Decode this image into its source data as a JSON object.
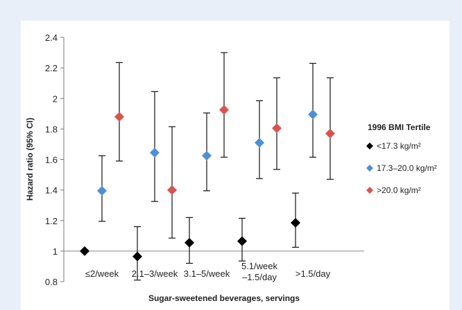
{
  "chart_data": {
    "type": "scatter",
    "title": "",
    "xlabel": "Sugar-sweetened beverages, servings",
    "ylabel": "Hazard ratio (95% CI)",
    "ylim": [
      0.8,
      2.4
    ],
    "yticks": [
      "0.8",
      "1",
      "1.2",
      "1.4",
      "1.6",
      "1.8",
      "2",
      "2.2",
      "2.4"
    ],
    "categories": [
      [
        "≤2/week"
      ],
      [
        "2.1–3/week"
      ],
      [
        "3.1–5/week"
      ],
      [
        "5.1/week",
        "–1.5/day"
      ],
      [
        ">1.5/day"
      ]
    ],
    "reference_line": 1,
    "grid": false,
    "legend_title": "1996 BMI Tertile",
    "legend_position": "right",
    "series": [
      {
        "name": "<17.3 kg/m²",
        "color": "#000000",
        "values": [
          1.0,
          0.965,
          1.055,
          1.065,
          1.185
        ],
        "ci_low": [
          null,
          0.81,
          0.92,
          0.935,
          1.025
        ],
        "ci_high": [
          null,
          1.16,
          1.22,
          1.215,
          1.38
        ]
      },
      {
        "name": "17.3–20.0 kg/m²",
        "color": "#4f8fd8",
        "values": [
          1.395,
          1.645,
          1.625,
          1.71,
          1.895
        ],
        "ci_low": [
          1.195,
          1.325,
          1.395,
          1.475,
          1.615
        ],
        "ci_high": [
          1.625,
          2.045,
          1.905,
          1.985,
          2.23
        ]
      },
      {
        "name": ">20.0 kg/m²",
        "color": "#d9534f",
        "values": [
          1.88,
          1.4,
          1.925,
          1.805,
          1.77
        ],
        "ci_low": [
          1.59,
          1.085,
          1.615,
          1.535,
          1.47
        ],
        "ci_high": [
          2.235,
          1.815,
          2.3,
          2.135,
          2.135
        ]
      }
    ]
  }
}
